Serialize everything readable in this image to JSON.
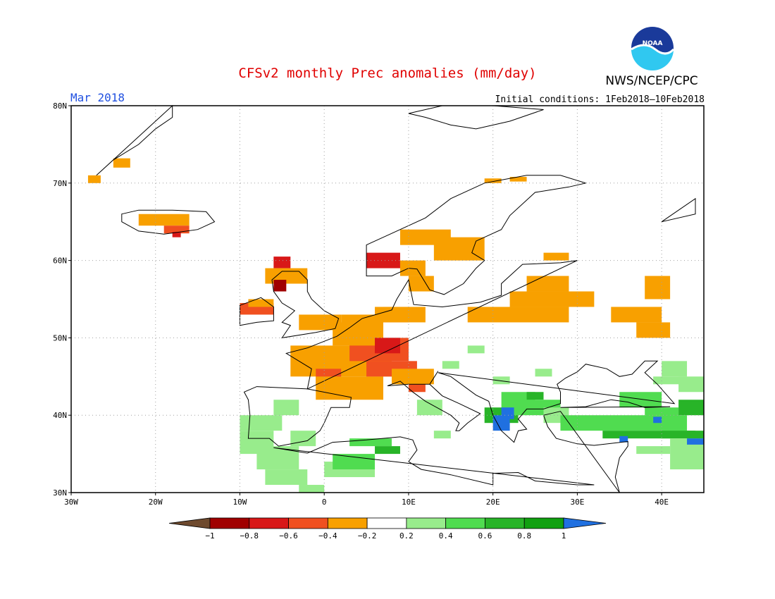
{
  "title": "CFSv2 monthly Prec anomalies (mm/day)",
  "month_label": "Mar 2018",
  "agency": "NWS/NCEP/CPC",
  "logo_text": "NOAA",
  "initial_conditions": "Initial conditions: 1Feb2018–10Feb2018",
  "colors": {
    "title": "#e00000",
    "month": "#2050e0",
    "frame": "#000000",
    "grid": "#a0a0a0",
    "coast": "#000000"
  },
  "latitude_labels": [
    "80N",
    "70N",
    "60N",
    "50N",
    "40N",
    "30N"
  ],
  "longitude_labels": [
    "30W",
    "20W",
    "10W",
    "0",
    "10E",
    "20E",
    "30E",
    "40E"
  ],
  "colorbar": {
    "bins": [
      {
        "color": "#6e4a2e"
      },
      {
        "color": "#a00000"
      },
      {
        "color": "#d81818"
      },
      {
        "color": "#f05020"
      },
      {
        "color": "#f8a000"
      },
      {
        "color": "#ffffff"
      },
      {
        "color": "#98ec8c"
      },
      {
        "color": "#50dc50"
      },
      {
        "color": "#28b428"
      },
      {
        "color": "#10a010"
      },
      {
        "color": "#2070e0"
      }
    ],
    "tick_labels": [
      "−1",
      "−0.8",
      "−0.6",
      "−0.4",
      "−0.2",
      "0.2",
      "0.4",
      "0.6",
      "0.8",
      "1"
    ]
  }
}
